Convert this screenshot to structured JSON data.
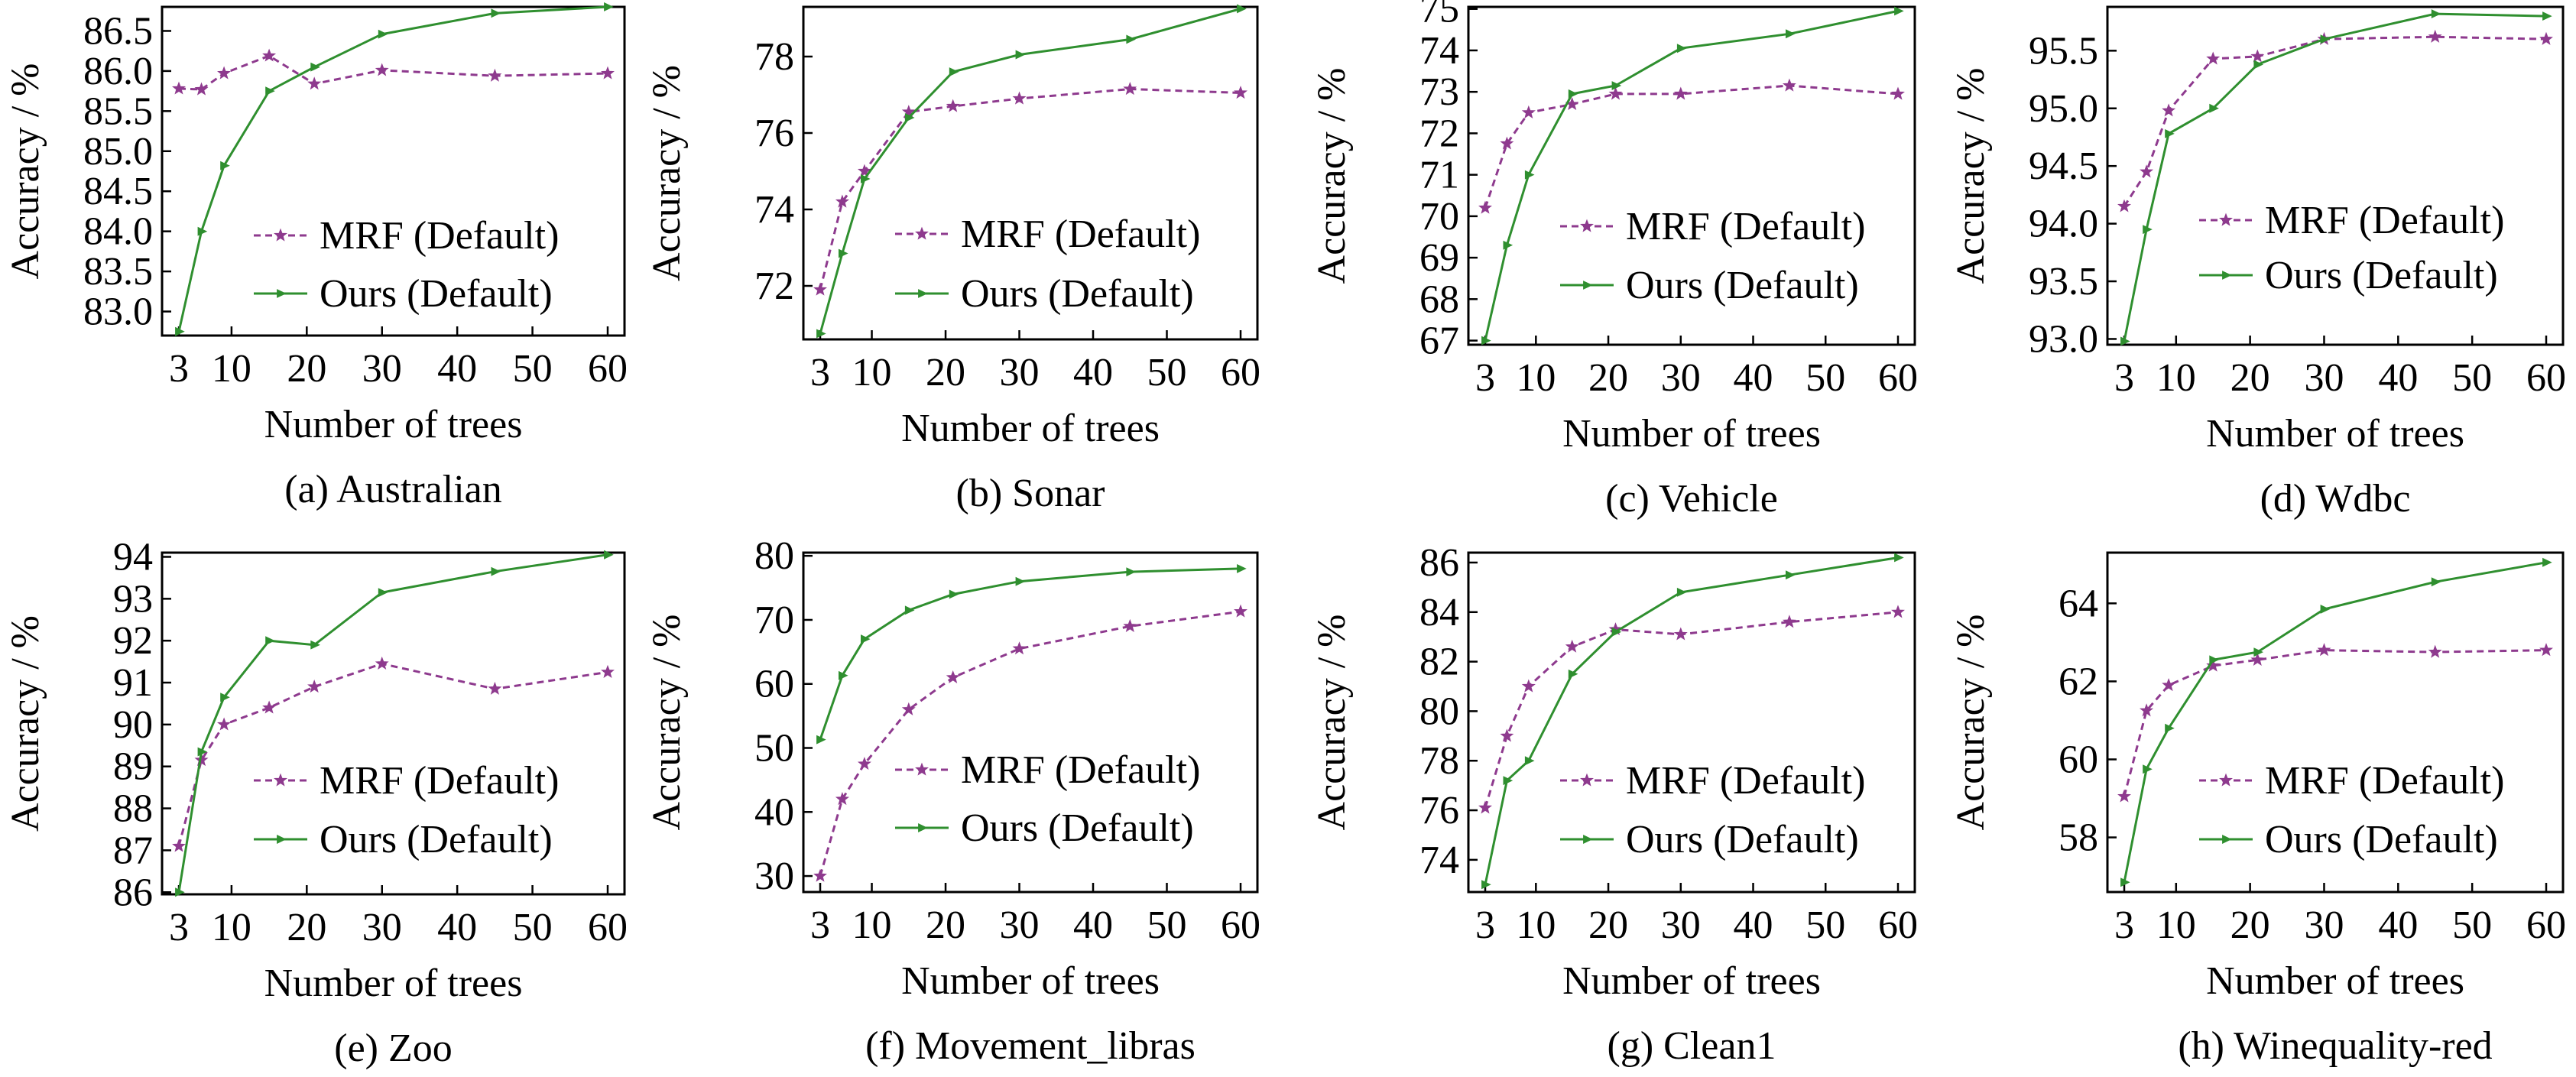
{
  "legend_labels": [
    "MRF (Default)",
    "Ours (Default)"
  ],
  "colors": {
    "mrf": "#8e3a8e",
    "ours": "#2f8f2f"
  },
  "chart_data": [
    {
      "type": "line",
      "caption": "(a) Australian",
      "xlabel": "Number of trees",
      "ylabel": "Accuracy / %",
      "xlim": [
        3,
        60
      ],
      "xticks": [
        3,
        10,
        20,
        30,
        40,
        50,
        60
      ],
      "ylim": [
        82.7,
        86.8
      ],
      "yticks": [
        "83.0",
        "83.5",
        "84.0",
        "84.5",
        "85.0",
        "85.5",
        "86.0",
        "86.5"
      ],
      "x": [
        3,
        6,
        9,
        15,
        21,
        30,
        45,
        60
      ],
      "series": [
        {
          "name": "MRF (Default)",
          "values": [
            85.78,
            85.77,
            85.97,
            86.19,
            85.84,
            86.01,
            85.94,
            85.97
          ]
        },
        {
          "name": "Ours (Default)",
          "values": [
            82.75,
            84.0,
            84.82,
            85.75,
            86.05,
            86.46,
            86.72,
            86.8
          ]
        }
      ]
    },
    {
      "type": "line",
      "caption": "(b) Sonar",
      "xlabel": "Number of trees",
      "ylabel": "Accuracy / %",
      "xlim": [
        3,
        60
      ],
      "xticks": [
        3,
        10,
        20,
        30,
        40,
        50,
        60
      ],
      "ylim": [
        70.6,
        79.3
      ],
      "yticks": [
        "72",
        "74",
        "76",
        "78"
      ],
      "x": [
        3,
        6,
        9,
        15,
        21,
        30,
        45,
        60
      ],
      "series": [
        {
          "name": "MRF (Default)",
          "values": [
            71.9,
            74.2,
            75.0,
            76.55,
            76.7,
            76.9,
            77.15,
            77.05
          ]
        },
        {
          "name": "Ours (Default)",
          "values": [
            70.75,
            72.85,
            74.8,
            76.4,
            77.6,
            78.05,
            78.45,
            79.25
          ]
        }
      ]
    },
    {
      "type": "line",
      "caption": "(c) Vehicle",
      "xlabel": "Number of trees",
      "ylabel": "Accuracy / %",
      "xlim": [
        3,
        60
      ],
      "xticks": [
        3,
        10,
        20,
        30,
        40,
        50,
        60
      ],
      "ylim": [
        66.9,
        75.05
      ],
      "yticks": [
        "67",
        "68",
        "69",
        "70",
        "71",
        "72",
        "73",
        "74",
        "75"
      ],
      "x": [
        3,
        6,
        9,
        15,
        21,
        30,
        45,
        60
      ],
      "series": [
        {
          "name": "MRF (Default)",
          "values": [
            70.2,
            71.75,
            72.5,
            72.7,
            72.95,
            72.95,
            73.15,
            72.95
          ]
        },
        {
          "name": "Ours (Default)",
          "values": [
            67.0,
            69.3,
            71.0,
            72.95,
            73.15,
            74.05,
            74.4,
            74.95
          ]
        }
      ]
    },
    {
      "type": "line",
      "caption": "(d) Wdbc",
      "xlabel": "Number of trees",
      "ylabel": "Accuracy / %",
      "xlim": [
        3,
        60
      ],
      "xticks": [
        3,
        10,
        20,
        30,
        40,
        50,
        60
      ],
      "ylim": [
        92.95,
        95.88
      ],
      "yticks": [
        "93.0",
        "93.5",
        "94.0",
        "94.5",
        "95.0",
        "95.5"
      ],
      "x": [
        3,
        6,
        9,
        15,
        21,
        30,
        45,
        60
      ],
      "series": [
        {
          "name": "MRF (Default)",
          "values": [
            94.15,
            94.45,
            94.98,
            95.43,
            95.45,
            95.6,
            95.62,
            95.6
          ]
        },
        {
          "name": "Ours (Default)",
          "values": [
            92.98,
            93.95,
            94.78,
            95.0,
            95.38,
            95.6,
            95.82,
            95.8
          ]
        }
      ]
    },
    {
      "type": "line",
      "caption": "(e) Zoo",
      "xlabel": "Number of trees",
      "ylabel": "Accuracy / %",
      "xlim": [
        3,
        60
      ],
      "xticks": [
        3,
        10,
        20,
        30,
        40,
        50,
        60
      ],
      "ylim": [
        85.95,
        94.1
      ],
      "yticks": [
        "86",
        "87",
        "88",
        "89",
        "90",
        "91",
        "92",
        "93",
        "94"
      ],
      "x": [
        3,
        6,
        9,
        15,
        21,
        30,
        45,
        60
      ],
      "series": [
        {
          "name": "MRF (Default)",
          "values": [
            87.1,
            89.15,
            90.0,
            90.4,
            90.9,
            91.45,
            90.85,
            91.25
          ]
        },
        {
          "name": "Ours (Default)",
          "values": [
            86.0,
            89.35,
            90.65,
            92.0,
            91.9,
            93.15,
            93.65,
            94.05
          ]
        }
      ]
    },
    {
      "type": "line",
      "caption": "(f) Movement_libras",
      "xlabel": "Number of trees",
      "ylabel": "Accuracy / %",
      "xlim": [
        3,
        60
      ],
      "xticks": [
        3,
        10,
        20,
        30,
        40,
        50,
        60
      ],
      "ylim": [
        27.5,
        80.5
      ],
      "yticks": [
        "30",
        "40",
        "50",
        "60",
        "70",
        "80"
      ],
      "x": [
        3,
        6,
        9,
        15,
        21,
        30,
        45,
        60
      ],
      "series": [
        {
          "name": "MRF (Default)",
          "values": [
            30.0,
            42.0,
            47.5,
            56.0,
            61.0,
            65.5,
            69.0,
            71.3
          ]
        },
        {
          "name": "Ours (Default)",
          "values": [
            51.3,
            61.3,
            67.0,
            71.5,
            74.0,
            76.0,
            77.5,
            78.0
          ]
        }
      ]
    },
    {
      "type": "line",
      "caption": "(g) Clean1",
      "xlabel": "Number of trees",
      "ylabel": "Accuracy / %",
      "xlim": [
        3,
        60
      ],
      "xticks": [
        3,
        10,
        20,
        30,
        40,
        50,
        60
      ],
      "ylim": [
        72.7,
        86.4
      ],
      "yticks": [
        "74",
        "76",
        "78",
        "80",
        "82",
        "84",
        "86"
      ],
      "x": [
        3,
        6,
        9,
        15,
        21,
        30,
        45,
        60
      ],
      "series": [
        {
          "name": "MRF (Default)",
          "values": [
            76.1,
            79.0,
            81.0,
            82.6,
            83.3,
            83.1,
            83.6,
            84.0
          ]
        },
        {
          "name": "Ours (Default)",
          "values": [
            73.0,
            77.2,
            78.0,
            81.5,
            83.2,
            84.8,
            85.5,
            86.2
          ]
        }
      ]
    },
    {
      "type": "line",
      "caption": "(h) Winequality-red",
      "xlabel": "Number of trees",
      "ylabel": "Accuracy / %",
      "xlim": [
        3,
        60
      ],
      "xticks": [
        3,
        10,
        20,
        30,
        40,
        50,
        60
      ],
      "ylim": [
        56.6,
        65.3
      ],
      "yticks": [
        "58",
        "60",
        "62",
        "64"
      ],
      "x": [
        3,
        6,
        9,
        15,
        21,
        30,
        45,
        60
      ],
      "series": [
        {
          "name": "MRF (Default)",
          "values": [
            59.05,
            61.25,
            61.9,
            62.4,
            62.55,
            62.8,
            62.75,
            62.8
          ]
        },
        {
          "name": "Ours (Default)",
          "values": [
            56.85,
            59.75,
            60.8,
            62.55,
            62.75,
            63.85,
            64.55,
            65.05
          ]
        }
      ]
    }
  ]
}
